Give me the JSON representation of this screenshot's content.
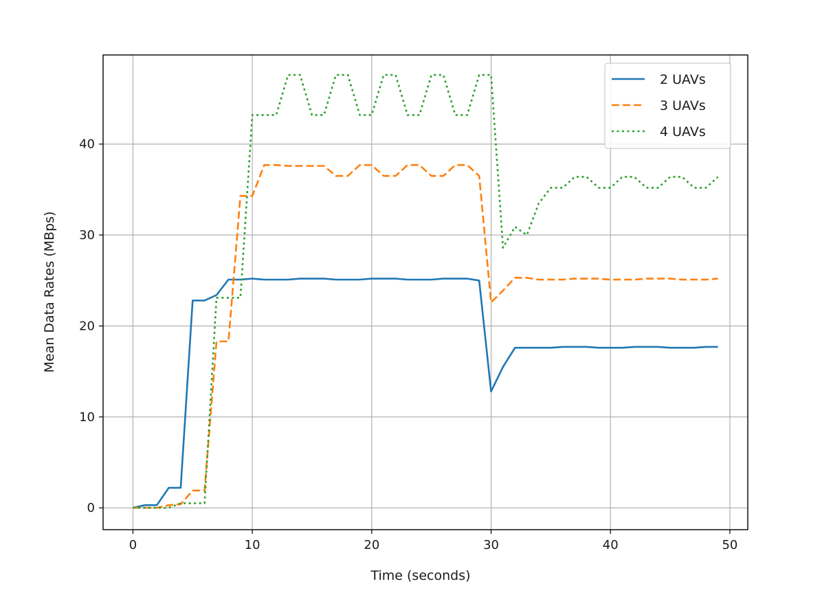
{
  "chart_data": {
    "type": "line",
    "title": "",
    "xlabel": "Time (seconds)",
    "ylabel": "Mean Data Rates (MBps)",
    "xlim": [
      -2.5,
      51.5
    ],
    "ylim": [
      -2.4,
      49.8
    ],
    "xticks": [
      0,
      10,
      20,
      30,
      40,
      50
    ],
    "yticks": [
      0,
      10,
      20,
      30,
      40
    ],
    "grid": true,
    "legend_position": "top-right",
    "x": [
      0,
      1,
      2,
      3,
      4,
      5,
      6,
      7,
      8,
      9,
      10,
      11,
      12,
      13,
      14,
      15,
      16,
      17,
      18,
      19,
      20,
      21,
      22,
      23,
      24,
      25,
      26,
      27,
      28,
      29,
      30,
      31,
      32,
      33,
      34,
      35,
      36,
      37,
      38,
      39,
      40,
      41,
      42,
      43,
      44,
      45,
      46,
      47,
      48,
      49
    ],
    "series": [
      {
        "name": "2 UAVs",
        "color": "#1f77b4",
        "style": "solid",
        "values": [
          0,
          0.3,
          0.3,
          2.2,
          2.2,
          22.8,
          22.8,
          23.4,
          25.1,
          25.1,
          25.2,
          25.1,
          25.1,
          25.1,
          25.2,
          25.2,
          25.2,
          25.1,
          25.1,
          25.1,
          25.2,
          25.2,
          25.2,
          25.1,
          25.1,
          25.1,
          25.2,
          25.2,
          25.2,
          25.0,
          12.8,
          15.5,
          17.6,
          17.6,
          17.6,
          17.6,
          17.7,
          17.7,
          17.7,
          17.6,
          17.6,
          17.6,
          17.7,
          17.7,
          17.7,
          17.6,
          17.6,
          17.6,
          17.7,
          17.7
        ]
      },
      {
        "name": "3 UAVs",
        "color": "#ff7f0e",
        "style": "dashed",
        "values": [
          0,
          0,
          0,
          0.3,
          0.4,
          1.9,
          1.9,
          18.3,
          18.3,
          34.3,
          34.3,
          37.7,
          37.7,
          37.6,
          37.6,
          37.6,
          37.6,
          36.5,
          36.5,
          37.7,
          37.7,
          36.5,
          36.5,
          37.7,
          37.7,
          36.5,
          36.5,
          37.7,
          37.7,
          36.5,
          22.6,
          23.9,
          25.3,
          25.3,
          25.1,
          25.1,
          25.1,
          25.2,
          25.2,
          25.2,
          25.1,
          25.1,
          25.1,
          25.2,
          25.2,
          25.2,
          25.1,
          25.1,
          25.1,
          25.2
        ]
      },
      {
        "name": "4 UAVs",
        "color": "#2ca02c",
        "style": "dotted",
        "values": [
          0,
          0,
          0,
          0,
          0.5,
          0.5,
          0.5,
          23.1,
          23.1,
          23.1,
          43.2,
          43.2,
          43.2,
          47.6,
          47.6,
          43.2,
          43.2,
          47.6,
          47.6,
          43.2,
          43.2,
          47.6,
          47.6,
          43.2,
          43.2,
          47.6,
          47.6,
          43.2,
          43.2,
          47.6,
          47.6,
          28.6,
          30.9,
          30.0,
          33.5,
          35.2,
          35.2,
          36.4,
          36.4,
          35.2,
          35.2,
          36.4,
          36.4,
          35.2,
          35.2,
          36.4,
          36.4,
          35.2,
          35.2,
          36.4
        ]
      }
    ]
  }
}
